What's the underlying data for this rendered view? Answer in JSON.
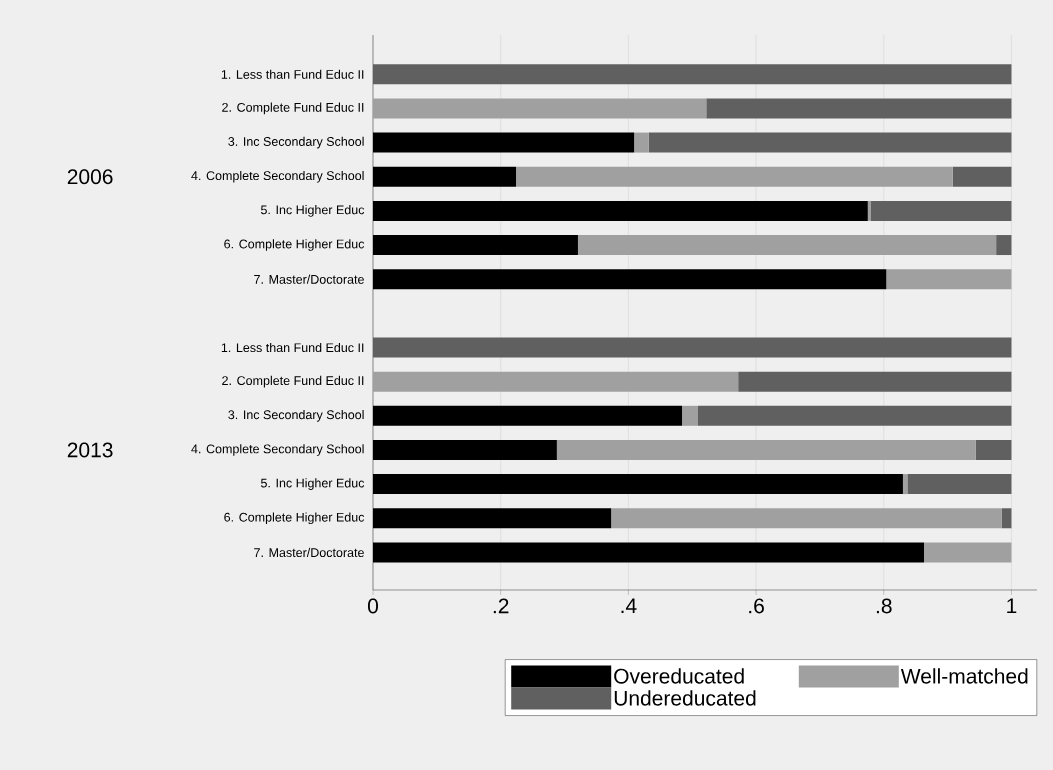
{
  "chart_data": {
    "type": "bar",
    "orientation": "horizontal",
    "stacked": true,
    "categories": [
      "1. Less than Fund Educ II",
      "2. Complete Fund Educ II",
      "3. Inc Secondary School",
      "4. Complete Secondary School",
      "5. Inc Higher Educ",
      "6. Complete Higher Educ",
      "7. Master/Doctorate",
      null,
      "1. Less than Fund Educ II",
      "2. Complete Fund Educ II",
      "3. Inc Secondary School",
      "4. Complete Secondary School",
      "5. Inc Higher Educ",
      "6. Complete Higher Educ",
      "7. Master/Doctorate"
    ],
    "series": [
      {
        "name": "Overeducated",
        "color": "#000000",
        "values": [
          0,
          0,
          0.409,
          0.224,
          0.775,
          0.321,
          0.804,
          null,
          0,
          0,
          0.484,
          0.288,
          0.83,
          0.373,
          0.863
        ]
      },
      {
        "name": "Well-matched",
        "color": "#a0a0a0",
        "values": [
          0,
          0.522,
          0.023,
          0.684,
          0.005,
          0.655,
          0.196,
          null,
          0,
          0.572,
          0.025,
          0.656,
          0.007,
          0.612,
          0.137
        ]
      },
      {
        "name": "Undereducated",
        "color": "#606060",
        "values": [
          1,
          0.478,
          0.568,
          0.092,
          0.22,
          0.024,
          0,
          null,
          1,
          0.428,
          0.491,
          0.056,
          0.163,
          0.015,
          0
        ]
      }
    ],
    "annotations": [
      "2006",
      "2013"
    ],
    "xlim": [
      0,
      1.04
    ],
    "xticks": [
      0,
      {
        "value": 0.2,
        "label": ".2"
      },
      {
        "value": 0.4,
        "label": ".4"
      },
      {
        "value": 0.6,
        "label": ".6"
      },
      {
        "value": 0.8,
        "label": ".8"
      },
      1
    ],
    "grid": "x",
    "legend": "bottom"
  }
}
